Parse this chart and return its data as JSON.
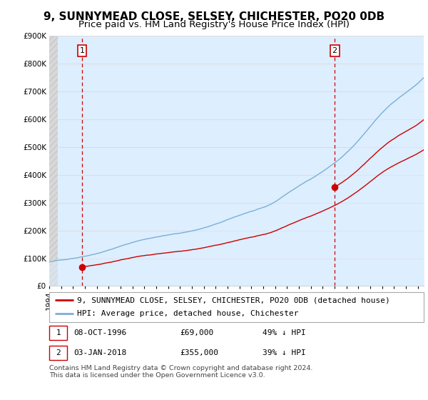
{
  "title": "9, SUNNYMEAD CLOSE, SELSEY, CHICHESTER, PO20 0DB",
  "subtitle": "Price paid vs. HM Land Registry's House Price Index (HPI)",
  "property_legend": "9, SUNNYMEAD CLOSE, SELSEY, CHICHESTER, PO20 0DB (detached house)",
  "hpi_legend": "HPI: Average price, detached house, Chichester",
  "sale1_date": "08-OCT-1996",
  "sale1_price": "£69,000",
  "sale1_hpi_text": "49% ↓ HPI",
  "sale2_date": "03-JAN-2018",
  "sale2_price": "£355,000",
  "sale2_hpi_text": "39% ↓ HPI",
  "footer": "Contains HM Land Registry data © Crown copyright and database right 2024.\nThis data is licensed under the Open Government Licence v3.0.",
  "sale1_x": 1996.77,
  "sale1_y": 69000,
  "sale2_x": 2018.01,
  "sale2_y": 355000,
  "property_color": "#cc0000",
  "hpi_color": "#7ab0d4",
  "hpi_fill_color": "#ddeeff",
  "vline_color": "#cc0000",
  "ylim": [
    0,
    900000
  ],
  "xlim_start": 1994.0,
  "xlim_end": 2025.5,
  "grid_color": "#cccccc",
  "hatch_color": "#c8c8c8",
  "title_fontsize": 11,
  "subtitle_fontsize": 9.5,
  "tick_fontsize": 7.5
}
